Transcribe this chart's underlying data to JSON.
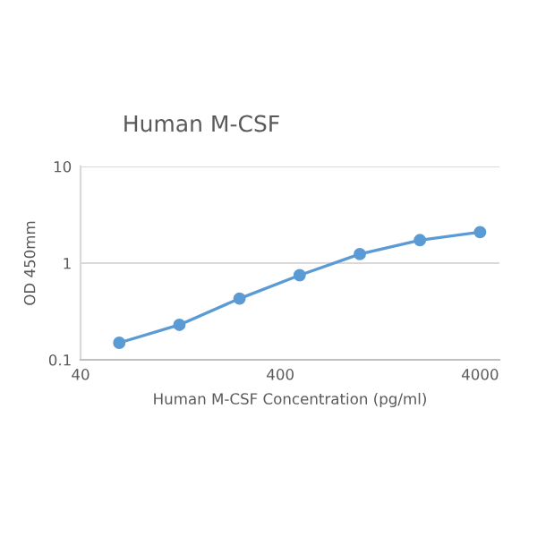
{
  "chart_data": {
    "type": "line",
    "title": "Human M-CSF",
    "xlabel": "Human M-CSF Concentration (pg/ml)",
    "ylabel": "OD 450mm",
    "x": [
      62.5,
      125,
      250,
      500,
      1000,
      2000,
      4000
    ],
    "series": [
      {
        "color": "#5b9bd5",
        "values": [
          0.15,
          0.23,
          0.43,
          0.75,
          1.24,
          1.73,
          2.09
        ]
      }
    ],
    "log": "xy",
    "xlim": [
      40,
      5000
    ],
    "xticks": [
      40,
      400,
      4000
    ],
    "ylim": [
      0.1,
      10
    ],
    "yticks": [
      0.1,
      1,
      10
    ],
    "grid": "y",
    "marker": "circle",
    "line_style": "solid"
  }
}
